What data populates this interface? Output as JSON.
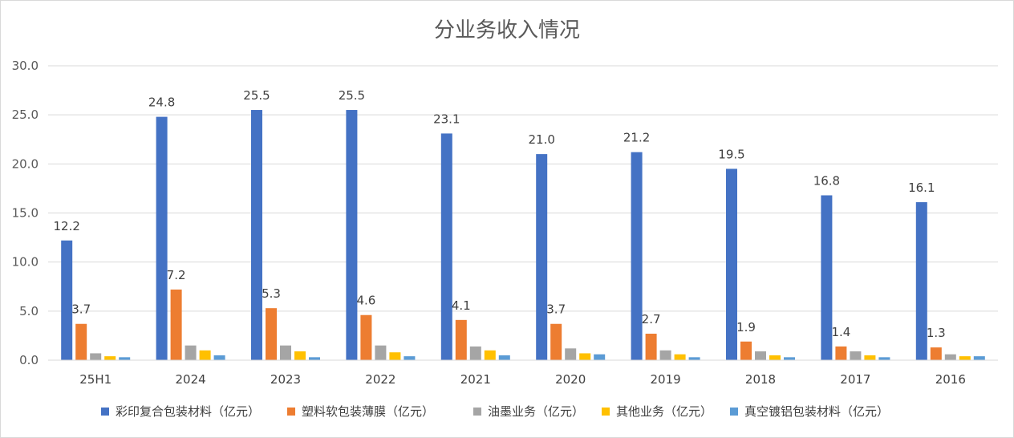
{
  "chart_data": {
    "type": "bar",
    "title": "分业务收入情况",
    "categories": [
      "25H1",
      "2024",
      "2023",
      "2022",
      "2021",
      "2020",
      "2019",
      "2018",
      "2017",
      "2016"
    ],
    "ylim": [
      0,
      30
    ],
    "yticks": [
      "0.0",
      "5.0",
      "10.0",
      "15.0",
      "20.0",
      "25.0",
      "30.0"
    ],
    "grid": true,
    "legend_position": "bottom",
    "series": [
      {
        "name": "彩印复合包装材料（亿元）",
        "color": "#4472c4",
        "values": [
          12.2,
          24.8,
          25.5,
          25.5,
          23.1,
          21.0,
          21.2,
          19.5,
          16.8,
          16.1
        ],
        "labels": [
          "12.2",
          "24.8",
          "25.5",
          "25.5",
          "23.1",
          "21.0",
          "21.2",
          "19.5",
          "16.8",
          "16.1"
        ]
      },
      {
        "name": "塑料软包装薄膜（亿元）",
        "color": "#ed7d31",
        "values": [
          3.7,
          7.2,
          5.3,
          4.6,
          4.1,
          3.7,
          2.7,
          1.9,
          1.4,
          1.3
        ],
        "labels": [
          "3.7",
          "7.2",
          "5.3",
          "4.6",
          "4.1",
          "3.7",
          "2.7",
          "1.9",
          "1.4",
          "1.3"
        ]
      },
      {
        "name": "油墨业务（亿元）",
        "color": "#a5a5a5",
        "values": [
          0.7,
          1.5,
          1.5,
          1.5,
          1.4,
          1.2,
          1.0,
          0.9,
          0.9,
          0.6
        ]
      },
      {
        "name": "其他业务（亿元）",
        "color": "#ffc000",
        "values": [
          0.4,
          1.0,
          0.9,
          0.8,
          1.0,
          0.7,
          0.6,
          0.5,
          0.5,
          0.4
        ]
      },
      {
        "name": "真空镀铝包装材料（亿元）",
        "color": "#5b9bd5",
        "values": [
          0.3,
          0.5,
          0.3,
          0.4,
          0.5,
          0.6,
          0.3,
          0.3,
          0.3,
          0.4
        ]
      }
    ]
  }
}
